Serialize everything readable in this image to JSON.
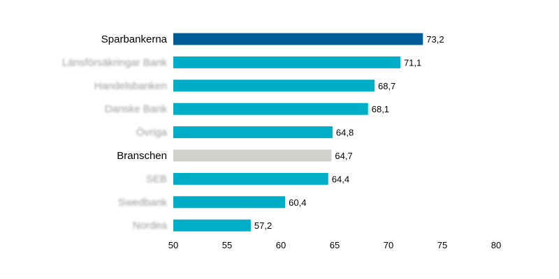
{
  "chart_data": {
    "type": "bar",
    "orientation": "horizontal",
    "title": "",
    "xlabel": "",
    "ylabel": "",
    "xlim": [
      50,
      80
    ],
    "xticks": [
      50,
      55,
      60,
      65,
      70,
      75,
      80
    ],
    "grid": false,
    "legend": "none",
    "categories": [
      "Sparbankerna",
      "Länsförsäkringar Bank",
      "Handelsbanken",
      "Danske Bank",
      "Övriga",
      "Branschen",
      "SEB",
      "Swedbank",
      "Nordea"
    ],
    "values": [
      73.2,
      71.1,
      68.7,
      68.1,
      64.8,
      64.7,
      64.4,
      60.4,
      57.2
    ],
    "value_labels": [
      "73,2",
      "71,1",
      "68,7",
      "68,1",
      "64,8",
      "64,7",
      "64,4",
      "60,4",
      "57,2"
    ],
    "label_blurred": [
      false,
      true,
      true,
      true,
      true,
      false,
      true,
      true,
      true
    ],
    "colors": [
      "#005c97",
      "#00adc6",
      "#00adc6",
      "#00adc6",
      "#00adc6",
      "#d0d0cc",
      "#00adc6",
      "#00adc6",
      "#00adc6"
    ]
  }
}
